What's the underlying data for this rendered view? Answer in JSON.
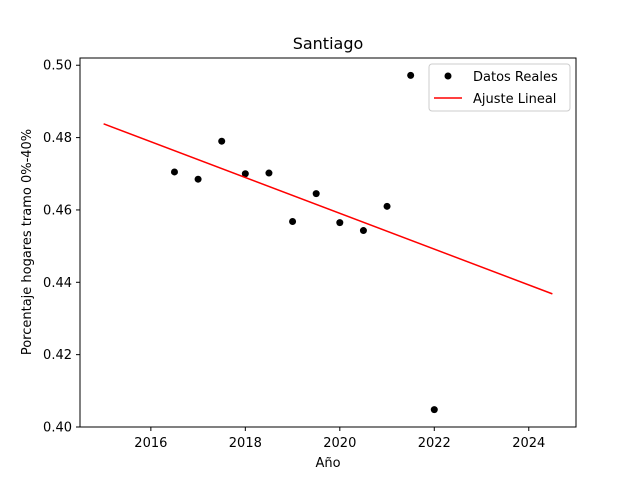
{
  "chart_data": {
    "type": "scatter",
    "title": "Santiago",
    "xlabel": "Año",
    "ylabel": "Porcentaje hogares tramo 0%-40%",
    "xlim": [
      2014.5,
      2025.0
    ],
    "ylim": [
      0.4,
      0.502
    ],
    "xticks": [
      2016,
      2018,
      2020,
      2022,
      2024
    ],
    "yticks": [
      0.4,
      0.42,
      0.44,
      0.46,
      0.48,
      0.5
    ],
    "xtick_labels": [
      "2016",
      "2018",
      "2020",
      "2022",
      "2024"
    ],
    "ytick_labels": [
      "0.40",
      "0.42",
      "0.44",
      "0.46",
      "0.48",
      "0.50"
    ],
    "grid": false,
    "legend_position": "top-right",
    "series": [
      {
        "name": "Datos Reales",
        "kind": "scatter",
        "color": "#000000",
        "x": [
          2016.5,
          2017.0,
          2017.5,
          2018.0,
          2018.5,
          2019.0,
          2019.5,
          2020.0,
          2020.5,
          2021.0,
          2021.5,
          2022.0
        ],
        "y": [
          0.4705,
          0.4685,
          0.479,
          0.47,
          0.4702,
          0.4568,
          0.4645,
          0.4565,
          0.4543,
          0.461,
          0.4972,
          0.4048
        ]
      },
      {
        "name": "Ajuste Lineal",
        "kind": "line",
        "color": "#ff0000",
        "x": [
          2015.0,
          2024.5
        ],
        "y": [
          0.4838,
          0.4368
        ]
      }
    ]
  }
}
